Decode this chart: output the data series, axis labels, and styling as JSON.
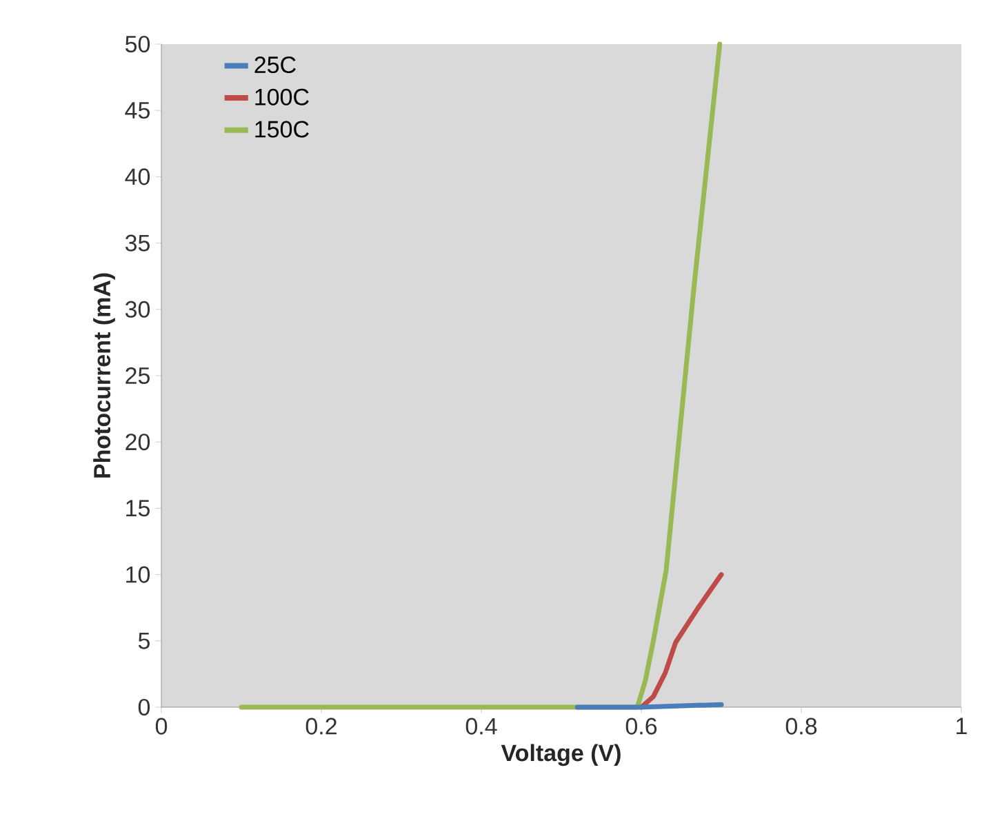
{
  "chart_data": {
    "type": "line",
    "xlabel": "Voltage (V)",
    "ylabel": "Photocurrent (mA)",
    "xlim": [
      0,
      1
    ],
    "ylim": [
      0,
      50
    ],
    "xticks": [
      0,
      0.2,
      0.4,
      0.6,
      0.8,
      1
    ],
    "yticks": [
      0,
      5,
      10,
      15,
      20,
      25,
      30,
      35,
      40,
      45,
      50
    ],
    "grid": false,
    "legend": "top left",
    "marker": "none",
    "line_style": "solid",
    "series": [
      {
        "name": "25C",
        "color": "#4a7ebb",
        "x": [
          0.52,
          0.55,
          0.58,
          0.6,
          0.65,
          0.7
        ],
        "values": [
          0,
          0,
          0,
          0,
          0.1,
          0.2
        ]
      },
      {
        "name": "100C",
        "color": "#be4b48",
        "x": [
          0.6,
          0.615,
          0.63,
          0.643,
          0.67,
          0.7
        ],
        "values": [
          0,
          0.8,
          2.6,
          4.9,
          7.4,
          10
        ]
      },
      {
        "name": "150C",
        "color": "#98b954",
        "x": [
          0.1,
          0.3,
          0.5,
          0.52,
          0.595,
          0.605,
          0.615,
          0.631,
          0.666,
          0.698
        ],
        "values": [
          0,
          0,
          0,
          0,
          0,
          2,
          5,
          10.3,
          31.8,
          50
        ]
      }
    ]
  }
}
